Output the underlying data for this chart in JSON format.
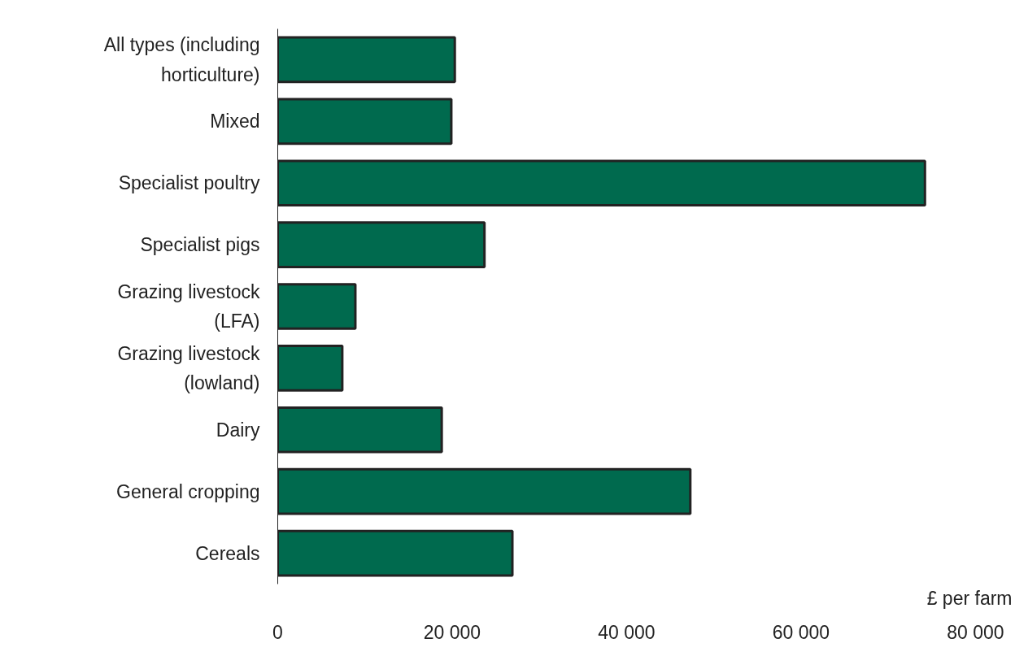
{
  "chart_data": {
    "type": "bar",
    "orientation": "horizontal",
    "xlabel": "£ per farm",
    "categories": [
      "All types (including horticulture)",
      "Mixed",
      "Specialist poultry",
      "Specialist pigs",
      "Grazing livestock (LFA)",
      "Grazing livestock (lowland)",
      "Dairy",
      "General cropping",
      "Cereals"
    ],
    "values": [
      20300,
      19900,
      74200,
      23700,
      8900,
      7400,
      18800,
      47300,
      26900
    ],
    "color": "#006a4e",
    "xlim": [
      0,
      80000
    ],
    "xticks": [
      {
        "value": 0,
        "label": "0"
      },
      {
        "value": 20000,
        "label": "20 000"
      },
      {
        "value": 40000,
        "label": "40 000"
      },
      {
        "value": 60000,
        "label": "60 000"
      },
      {
        "value": 80000,
        "label": "80 000"
      }
    ],
    "grid": false
  }
}
